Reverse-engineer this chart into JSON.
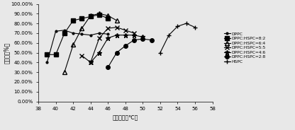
{
  "title": "",
  "xlabel": "释放温度（℃）",
  "ylabel": "释放度（%）",
  "xlim": [
    38,
    58
  ],
  "ylim": [
    0,
    100
  ],
  "xticks": [
    38,
    40,
    42,
    44,
    46,
    48,
    50,
    52,
    54,
    56,
    58
  ],
  "ytick_labels": [
    "0.00%",
    "10.00%",
    "20.00%",
    "30.00%",
    "40.00%",
    "50.00%",
    "60.00%",
    "70.00%",
    "80.00%",
    "90.00%",
    "100.00%"
  ],
  "series": [
    {
      "label": "DPPC",
      "marker": ".",
      "ms": 4,
      "mfc": "black",
      "mec": "black",
      "color": "black",
      "x": [
        39,
        40,
        41,
        42,
        43,
        44,
        45,
        46
      ],
      "y": [
        40,
        72,
        73,
        70,
        69,
        68,
        70,
        69
      ]
    },
    {
      "label": "DPPC:HSPC=8:2",
      "marker": "s",
      "ms": 4,
      "mfc": "black",
      "mec": "black",
      "color": "black",
      "x": [
        39,
        40,
        41,
        42,
        43,
        44,
        45,
        46
      ],
      "y": [
        48,
        48,
        70,
        83,
        85,
        87,
        89,
        85
      ]
    },
    {
      "label": "DPPC:HSPC=6:4",
      "marker": "^",
      "ms": 4,
      "mfc": "none",
      "mec": "black",
      "color": "black",
      "x": [
        41,
        42,
        43,
        44,
        45,
        46,
        47
      ],
      "y": [
        30,
        58,
        75,
        88,
        90,
        88,
        83
      ]
    },
    {
      "label": "DPPC:HSPC=5:5",
      "marker": "x",
      "ms": 4,
      "mfc": "black",
      "mec": "black",
      "color": "black",
      "x": [
        43,
        44,
        45,
        46,
        47,
        48,
        49
      ],
      "y": [
        47,
        40,
        65,
        75,
        76,
        73,
        70
      ]
    },
    {
      "label": "DPPC:HSPC=4:6",
      "marker": "*",
      "ms": 5,
      "mfc": "black",
      "mec": "black",
      "color": "black",
      "x": [
        44,
        45,
        46,
        47,
        48,
        49,
        50
      ],
      "y": [
        40,
        50,
        65,
        68,
        68,
        68,
        66
      ]
    },
    {
      "label": "DPPC:HSPC=2:8",
      "marker": "o",
      "ms": 4,
      "mfc": "black",
      "mec": "black",
      "color": "black",
      "x": [
        46,
        47,
        48,
        49,
        50,
        51
      ],
      "y": [
        35,
        50,
        57,
        63,
        64,
        63
      ]
    },
    {
      "label": "HSPC",
      "marker": "+",
      "ms": 5,
      "mfc": "black",
      "mec": "black",
      "color": "black",
      "x": [
        52,
        53,
        54,
        55,
        56
      ],
      "y": [
        50,
        68,
        77,
        80,
        76
      ]
    }
  ],
  "bg_color": "#e8e8e8",
  "legend_fontsize": 4.2,
  "tick_fontsize": 5,
  "axis_label_fontsize": 5.5,
  "linewidth": 0.8
}
